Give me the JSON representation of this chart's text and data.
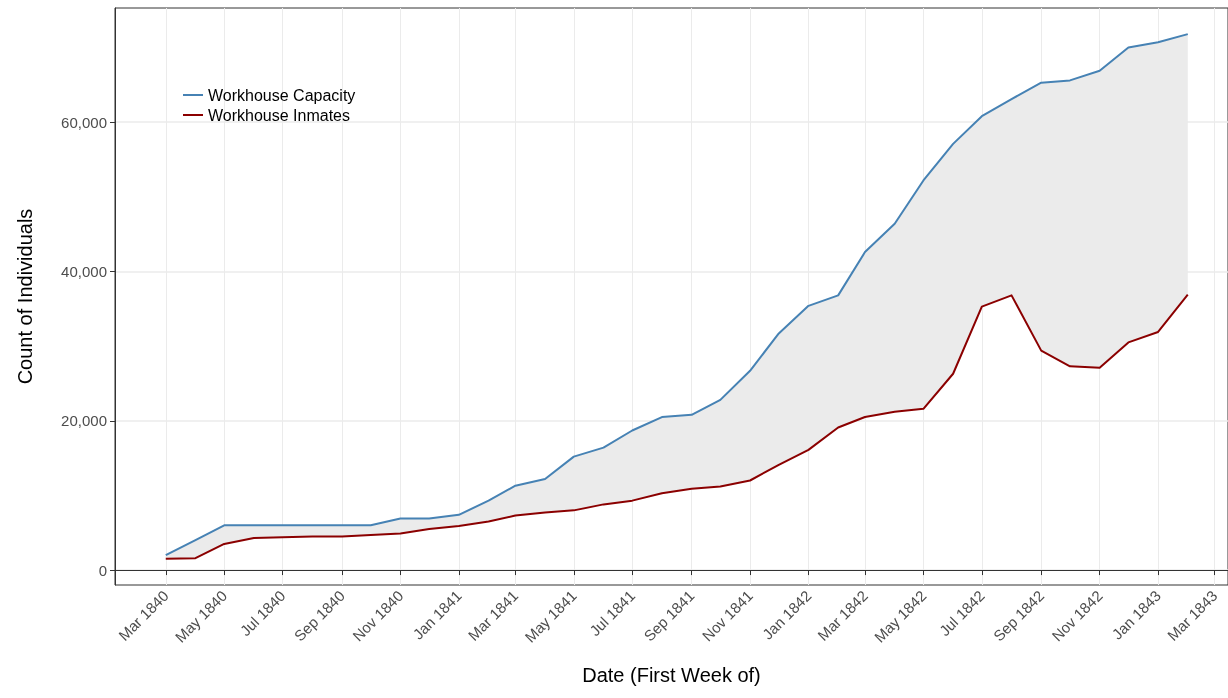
{
  "chart_data": {
    "type": "line",
    "xlabel": "Date (First Week of)",
    "ylabel": "Count of Individuals",
    "x": [
      "1840-03",
      "1840-04",
      "1840-05",
      "1840-06",
      "1840-07",
      "1840-08",
      "1840-09",
      "1840-10",
      "1840-11",
      "1840-12",
      "1841-01",
      "1841-02",
      "1841-03",
      "1841-04",
      "1841-05",
      "1841-06",
      "1841-07",
      "1841-08",
      "1841-09",
      "1841-10",
      "1841-11",
      "1841-12",
      "1842-01",
      "1842-02",
      "1842-03",
      "1842-04",
      "1842-05",
      "1842-06",
      "1842-07",
      "1842-08",
      "1842-09",
      "1842-10",
      "1842-11",
      "1842-12",
      "1843-01",
      "1843-02"
    ],
    "series": [
      {
        "name": "Workhouse Capacity",
        "color": "#4682b4",
        "values": [
          2000,
          4000,
          6000,
          6000,
          6000,
          6000,
          6000,
          6000,
          6900,
          6900,
          7400,
          9300,
          11300,
          12200,
          15200,
          16400,
          18700,
          20500,
          20800,
          22800,
          26700,
          31700,
          35400,
          36800,
          42600,
          46400,
          52200,
          57100,
          60800,
          63100,
          65300,
          65600,
          66900,
          70000,
          70700,
          71800
        ],
        "upper": [
          2000,
          4000,
          6000,
          6000,
          6000,
          6000,
          6000,
          6000,
          6900,
          6900,
          7400,
          9300,
          11300,
          12200,
          15200,
          16400,
          18700,
          20500,
          20800,
          22800,
          26700,
          31700,
          35400,
          36800,
          42600,
          46400,
          52200,
          57100,
          60800,
          63100,
          65300,
          65600,
          66900,
          70000,
          70700,
          71800
        ],
        "lower": [
          1500,
          1600,
          3500,
          4300,
          4400,
          4500,
          4500,
          4700,
          4900,
          5500,
          5900,
          6500,
          7300,
          7700,
          8000,
          8800,
          9300,
          10300,
          10900,
          11200,
          12000,
          14100,
          16100,
          19100,
          20500,
          21200,
          21600,
          26300,
          35300,
          36800,
          29400,
          27300,
          27100,
          30500,
          31900,
          36900
        ]
      },
      {
        "name": "Workhouse Inmates",
        "color": "#8b0000",
        "values": [
          1500,
          1600,
          3500,
          4300,
          4400,
          4500,
          4500,
          4700,
          4900,
          5500,
          5900,
          6500,
          7300,
          7700,
          8000,
          8800,
          9300,
          10300,
          10900,
          11200,
          12000,
          14100,
          16100,
          19100,
          20500,
          21200,
          21600,
          26300,
          35300,
          36800,
          29400,
          27300,
          27100,
          30500,
          31900,
          36900
        ]
      }
    ],
    "xlim": [
      "1840-01-08",
      "1843-03-15"
    ],
    "xticks": [
      {
        "value": "1840-03",
        "label": "Mar 1840"
      },
      {
        "value": "1840-05",
        "label": "May 1840"
      },
      {
        "value": "1840-07",
        "label": "Jul 1840"
      },
      {
        "value": "1840-09",
        "label": "Sep 1840"
      },
      {
        "value": "1840-11",
        "label": "Nov 1840"
      },
      {
        "value": "1841-01",
        "label": "Jan 1841"
      },
      {
        "value": "1841-03",
        "label": "Mar 1841"
      },
      {
        "value": "1841-05",
        "label": "May 1841"
      },
      {
        "value": "1841-07",
        "label": "Jul 1841"
      },
      {
        "value": "1841-09",
        "label": "Sep 1841"
      },
      {
        "value": "1841-11",
        "label": "Nov 1841"
      },
      {
        "value": "1842-01",
        "label": "Jan 1842"
      },
      {
        "value": "1842-03",
        "label": "Mar 1842"
      },
      {
        "value": "1842-05",
        "label": "May 1842"
      },
      {
        "value": "1842-07",
        "label": "Jul 1842"
      },
      {
        "value": "1842-09",
        "label": "Sep 1842"
      },
      {
        "value": "1842-11",
        "label": "Nov 1842"
      },
      {
        "value": "1843-01",
        "label": "Jan 1843"
      },
      {
        "value": "1843-03",
        "label": "Mar 1843"
      }
    ],
    "ylim": [
      -2000,
      75300
    ],
    "yticks": [
      0,
      {
        "value": 20000,
        "label": "20,000"
      },
      {
        "value": 40000,
        "label": "40,000"
      },
      {
        "value": 60000,
        "label": "60,000"
      }
    ],
    "grid": true,
    "legend": "top left",
    "marker": "none",
    "line_style": "solid"
  }
}
